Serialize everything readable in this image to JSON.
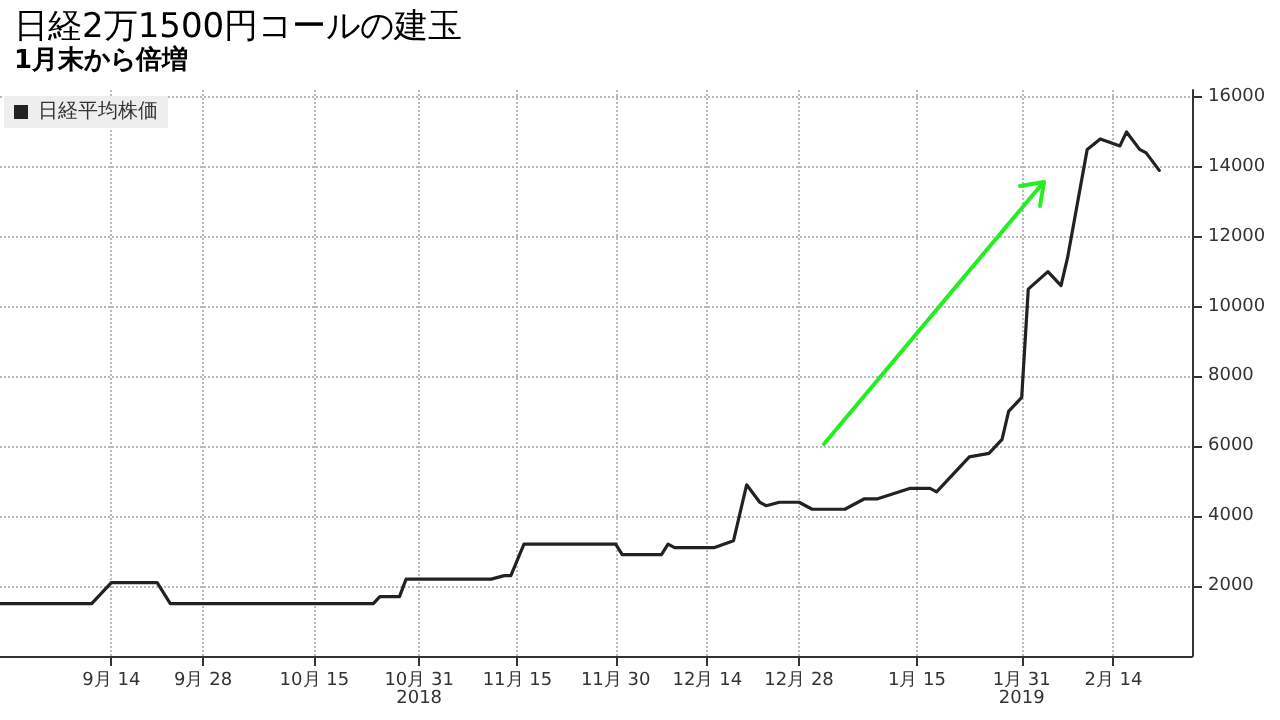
{
  "chart_data": {
    "type": "line",
    "title": "日経2万1500円コールの建玉",
    "subtitle": "1月末から倍増",
    "x": [
      "2018-08-28",
      "2018-09-11",
      "2018-09-14",
      "2018-09-21",
      "2018-09-23",
      "2018-10-24",
      "2018-10-25",
      "2018-10-28",
      "2018-10-29",
      "2018-11-11",
      "2018-11-13",
      "2018-11-14",
      "2018-11-16",
      "2018-11-30",
      "2018-12-01",
      "2018-12-07",
      "2018-12-08",
      "2018-12-09",
      "2018-12-15",
      "2018-12-18",
      "2018-12-20",
      "2018-12-22",
      "2018-12-23",
      "2018-12-25",
      "2018-12-28",
      "2018-12-30",
      "2019-01-04",
      "2019-01-07",
      "2019-01-09",
      "2019-01-14",
      "2019-01-17",
      "2019-01-18",
      "2019-01-23",
      "2019-01-26",
      "2019-01-28",
      "2019-01-29",
      "2019-01-31",
      "2019-02-01",
      "2019-02-04",
      "2019-02-06",
      "2019-02-07",
      "2019-02-10",
      "2019-02-12",
      "2019-02-15",
      "2019-02-16",
      "2019-02-18",
      "2019-02-19",
      "2019-02-21"
    ],
    "series": [
      {
        "name": "日経平均株価",
        "color": "#222222",
        "values": [
          1500,
          1500,
          2100,
          2100,
          1500,
          1500,
          1700,
          1700,
          2200,
          2200,
          2300,
          2300,
          3200,
          3200,
          2900,
          2900,
          3200,
          3100,
          3100,
          3300,
          4900,
          4400,
          4300,
          4400,
          4400,
          4200,
          4200,
          4500,
          4500,
          4800,
          4800,
          4700,
          5700,
          5800,
          6200,
          7000,
          7400,
          10500,
          11000,
          10600,
          11400,
          14500,
          14800,
          14600,
          15000,
          14500,
          14400,
          13900
        ]
      }
    ],
    "xlim": [
      "2018-08-28",
      "2019-02-26"
    ],
    "xticks": [
      {
        "value": "2018-09-14",
        "label": "9月 14"
      },
      {
        "value": "2018-09-28",
        "label": "9月 28"
      },
      {
        "value": "2018-10-15",
        "label": "10月 15"
      },
      {
        "value": "2018-10-31",
        "label": "10月 31\n2018"
      },
      {
        "value": "2018-11-15",
        "label": "11月 15"
      },
      {
        "value": "2018-11-30",
        "label": "11月 30"
      },
      {
        "value": "2018-12-14",
        "label": "12月 14"
      },
      {
        "value": "2018-12-28",
        "label": "12月 28"
      },
      {
        "value": "2019-01-15",
        "label": "1月 15"
      },
      {
        "value": "2019-01-31",
        "label": "1月 31\n2019"
      },
      {
        "value": "2019-02-14",
        "label": "2月 14"
      }
    ],
    "ylim": [
      0,
      16200
    ],
    "yticks": [
      2000,
      4000,
      6000,
      8000,
      10000,
      12000,
      14000,
      16000
    ],
    "grid": true,
    "legend": "top left",
    "marker": "none",
    "line_style": "solid"
  }
}
